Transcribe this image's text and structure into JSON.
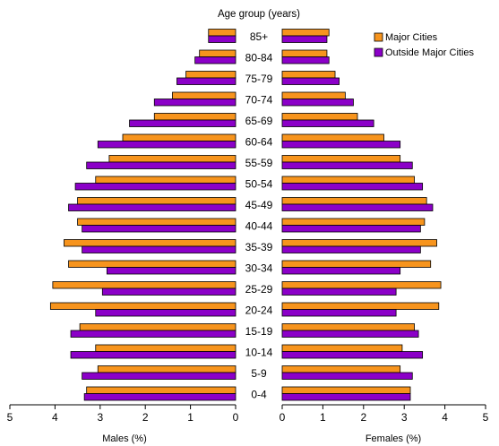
{
  "chart_data": {
    "type": "bar",
    "subtype": "population-pyramid",
    "category_axis_label": "Age group (years)",
    "categories": [
      "85+",
      "80-84",
      "75-79",
      "70-74",
      "65-69",
      "60-64",
      "55-59",
      "50-54",
      "45-49",
      "40-44",
      "35-39",
      "30-34",
      "25-29",
      "20-24",
      "15-19",
      "10-14",
      "5-9",
      "0-4"
    ],
    "series": [
      {
        "name": "Major Cities",
        "color": "#f7941d",
        "males": [
          0.6,
          0.8,
          1.1,
          1.4,
          1.8,
          2.5,
          2.8,
          3.1,
          3.5,
          3.5,
          3.8,
          3.7,
          4.05,
          4.1,
          3.45,
          3.1,
          3.05,
          3.3
        ],
        "females": [
          1.15,
          1.1,
          1.3,
          1.55,
          1.85,
          2.5,
          2.9,
          3.25,
          3.55,
          3.5,
          3.8,
          3.65,
          3.9,
          3.85,
          3.25,
          2.95,
          2.9,
          3.15
        ]
      },
      {
        "name": "Outside Major Cities",
        "color": "#8b00c8",
        "males": [
          0.6,
          0.9,
          1.3,
          1.8,
          2.35,
          3.05,
          3.3,
          3.55,
          3.7,
          3.4,
          3.4,
          2.85,
          2.95,
          3.1,
          3.65,
          3.65,
          3.4,
          3.35
        ],
        "females": [
          1.1,
          1.15,
          1.4,
          1.75,
          2.25,
          2.9,
          3.2,
          3.45,
          3.7,
          3.4,
          3.4,
          2.9,
          2.8,
          2.8,
          3.35,
          3.45,
          3.2,
          3.15
        ]
      }
    ],
    "left_axis": {
      "label": "Males (%)",
      "ticks": [
        5,
        4,
        3,
        2,
        1,
        0
      ],
      "range": [
        0,
        5
      ],
      "direction": "reversed"
    },
    "right_axis": {
      "label": "Females (%)",
      "ticks": [
        0,
        1,
        2,
        3,
        4,
        5
      ],
      "range": [
        0,
        5
      ]
    },
    "grid": false,
    "legend_position": "top-right"
  }
}
